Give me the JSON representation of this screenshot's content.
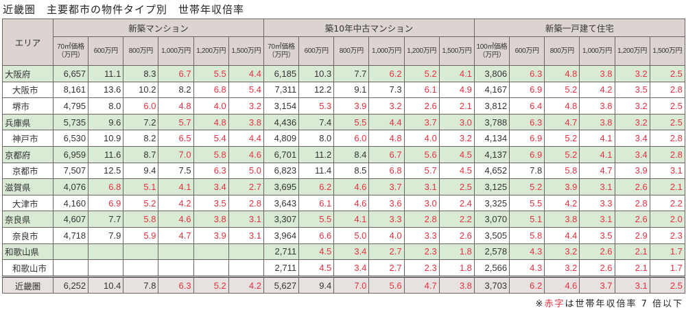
{
  "title": "近畿圏　主要都市の物件タイプ別　世帯年収倍率",
  "area_header": "エリア",
  "groups": [
    {
      "label": "新築マンション",
      "price_header": "70㎡価格（万円）"
    },
    {
      "label": "築10年中古マンション",
      "price_header": "70㎡価格（万円）"
    },
    {
      "label": "新築一戸建て住宅",
      "price_header": "100㎡価格（万円）"
    }
  ],
  "income_headers": [
    "600万円",
    "800万円",
    "1,000万円",
    "1,200万円",
    "1,500万円"
  ],
  "red_threshold": 7,
  "accent_red": "#e8303f",
  "rows": [
    {
      "name": "大阪府",
      "type": "pref",
      "cells": [
        "6,657",
        "11.1",
        "8.3",
        "6.7",
        "5.5",
        "4.4",
        "6,185",
        "10.3",
        "7.7",
        "6.2",
        "5.2",
        "4.1",
        "3,806",
        "6.3",
        "4.8",
        "3.8",
        "3.2",
        "2.5"
      ]
    },
    {
      "name": "大阪市",
      "type": "city",
      "cells": [
        "8,161",
        "13.6",
        "10.2",
        "8.2",
        "6.8",
        "5.4",
        "7,311",
        "12.2",
        "9.1",
        "7.3",
        "6.1",
        "4.9",
        "4,167",
        "6.9",
        "5.2",
        "4.2",
        "3.5",
        "2.8"
      ]
    },
    {
      "name": "堺市",
      "type": "city",
      "cells": [
        "4,795",
        "8.0",
        "6.0",
        "4.8",
        "4.0",
        "3.2",
        "3,154",
        "5.3",
        "3.9",
        "3.2",
        "2.6",
        "2.1",
        "3,812",
        "6.4",
        "4.8",
        "3.8",
        "3.2",
        "2.5"
      ]
    },
    {
      "name": "兵庫県",
      "type": "pref",
      "cells": [
        "5,735",
        "9.6",
        "7.2",
        "5.7",
        "4.8",
        "3.8",
        "4,436",
        "7.4",
        "5.5",
        "4.4",
        "3.7",
        "3.0",
        "3,788",
        "6.3",
        "4.7",
        "3.8",
        "3.2",
        "2.5"
      ]
    },
    {
      "name": "神戸市",
      "type": "city",
      "cells": [
        "6,530",
        "10.9",
        "8.2",
        "6.5",
        "5.4",
        "4.4",
        "4,809",
        "8.0",
        "6.0",
        "4.8",
        "4.0",
        "3.2",
        "4,134",
        "6.9",
        "5.2",
        "4.1",
        "3.4",
        "2.8"
      ]
    },
    {
      "name": "京都府",
      "type": "pref",
      "cells": [
        "6,959",
        "11.6",
        "8.7",
        "7.0",
        "5.8",
        "4.6",
        "6,701",
        "11.2",
        "8.4",
        "6.7",
        "5.6",
        "4.5",
        "4,137",
        "6.9",
        "5.2",
        "4.1",
        "3.4",
        "2.8"
      ]
    },
    {
      "name": "京都市",
      "type": "city",
      "cells": [
        "7,507",
        "12.5",
        "9.4",
        "7.5",
        "6.3",
        "5.0",
        "6,823",
        "11.4",
        "8.5",
        "6.8",
        "5.7",
        "4.5",
        "4,652",
        "7.8",
        "5.8",
        "4.7",
        "3.9",
        "3.1"
      ]
    },
    {
      "name": "滋賀県",
      "type": "pref",
      "cells": [
        "4,076",
        "6.8",
        "5.1",
        "4.1",
        "3.4",
        "2.7",
        "3,695",
        "6.2",
        "4.6",
        "3.7",
        "3.1",
        "2.5",
        "3,125",
        "5.2",
        "3.9",
        "3.1",
        "2.6",
        "2.1"
      ]
    },
    {
      "name": "大津市",
      "type": "city",
      "cells": [
        "4,160",
        "6.9",
        "5.2",
        "4.2",
        "3.5",
        "2.8",
        "3,643",
        "6.1",
        "4.6",
        "3.6",
        "3.0",
        "2.4",
        "3,325",
        "5.5",
        "4.2",
        "3.3",
        "2.8",
        "2.2"
      ]
    },
    {
      "name": "奈良県",
      "type": "pref",
      "cells": [
        "4,607",
        "7.7",
        "5.8",
        "4.6",
        "3.8",
        "3.1",
        "3,307",
        "5.5",
        "4.1",
        "3.3",
        "2.8",
        "2.2",
        "3,070",
        "5.1",
        "3.8",
        "3.1",
        "2.6",
        "2.0"
      ]
    },
    {
      "name": "奈良市",
      "type": "city",
      "cells": [
        "4,718",
        "7.9",
        "5.9",
        "4.7",
        "3.9",
        "3.1",
        "3,964",
        "6.6",
        "5.0",
        "4.0",
        "3.3",
        "2.6",
        "3,505",
        "5.8",
        "4.4",
        "3.5",
        "2.9",
        "2.3"
      ]
    },
    {
      "name": "和歌山県",
      "type": "pref",
      "cells": [
        "",
        "",
        "",
        "",
        "",
        "",
        "2,711",
        "4.5",
        "3.4",
        "2.7",
        "2.3",
        "1.8",
        "2,578",
        "4.3",
        "3.2",
        "2.6",
        "2.1",
        "1.7"
      ]
    },
    {
      "name": "和歌山市",
      "type": "city",
      "cells": [
        "",
        "",
        "",
        "",
        "",
        "",
        "2,711",
        "4.5",
        "3.4",
        "2.7",
        "2.3",
        "1.8",
        "2,566",
        "4.3",
        "3.2",
        "2.6",
        "2.1",
        "1.7"
      ]
    },
    {
      "name": "近畿圏",
      "type": "total",
      "cells": [
        "6,252",
        "10.4",
        "7.8",
        "6.3",
        "5.2",
        "4.2",
        "5,627",
        "9.4",
        "7.0",
        "5.6",
        "4.7",
        "3.8",
        "3,703",
        "6.2",
        "4.6",
        "3.7",
        "3.1",
        "2.5"
      ]
    }
  ],
  "note": {
    "prefix": "※",
    "red": "赤字",
    "suffix": "は世帯年収倍率 7 倍以下"
  }
}
